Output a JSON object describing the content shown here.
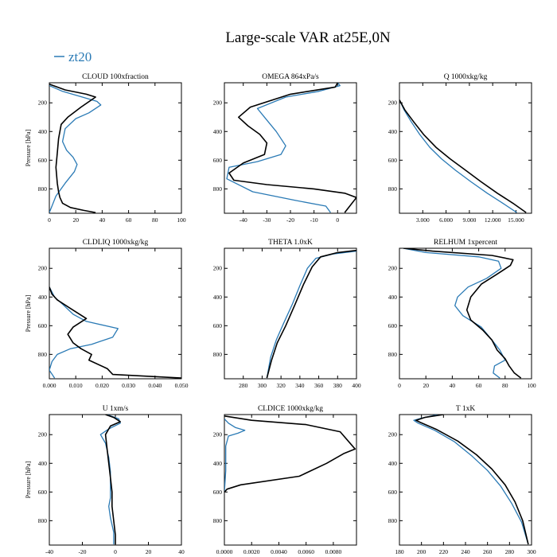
{
  "figure": {
    "title": "Large-scale VAR at25E,0N",
    "legend": {
      "label": "zt20",
      "color": "#2a7ab5"
    }
  },
  "colors": {
    "zt20": "#2a7ab5",
    "reference": "#000000",
    "axis": "#000000"
  },
  "chart_data": [
    {
      "type": "line",
      "title": "CLOUD  100xfraction",
      "xlabel": "",
      "ylabel": "Pressure [hPa]",
      "xlim": [
        0,
        100
      ],
      "ylim": [
        970,
        60
      ],
      "xticks": [
        0,
        20,
        40,
        60,
        80,
        100
      ],
      "xtick_labels": [
        "0",
        "20",
        "40",
        "60",
        "80",
        "100"
      ],
      "yticks": [
        200,
        400,
        600,
        800
      ],
      "ytick_labels": [
        "200",
        "400",
        "600",
        "800"
      ],
      "series": [
        {
          "name": "zt20",
          "color": "#2a7ab5",
          "x": [
            0,
            10,
            25,
            36,
            39,
            30,
            20,
            12,
            10,
            13,
            18,
            21,
            19,
            12,
            5,
            2,
            0
          ],
          "y": [
            80,
            120,
            160,
            190,
            215,
            270,
            310,
            380,
            470,
            530,
            580,
            630,
            680,
            760,
            850,
            920,
            965
          ]
        },
        {
          "name": "reference",
          "color": "#000000",
          "x": [
            0,
            12,
            28,
            35,
            24,
            14,
            9,
            7,
            6,
            5,
            6,
            7,
            8,
            10,
            16,
            26,
            35
          ],
          "y": [
            70,
            110,
            140,
            160,
            230,
            300,
            350,
            450,
            550,
            650,
            760,
            820,
            860,
            900,
            930,
            950,
            965
          ]
        }
      ]
    },
    {
      "type": "line",
      "title": "OMEGA  864xPa/s",
      "xlabel": "",
      "ylabel": "",
      "xlim": [
        -48,
        8
      ],
      "ylim": [
        970,
        60
      ],
      "xticks": [
        -40,
        -30,
        -20,
        -10,
        0
      ],
      "xtick_labels": [
        "-40",
        "-30",
        "-20",
        "-10",
        "0"
      ],
      "yticks": [
        200,
        400,
        600,
        800
      ],
      "ytick_labels": [
        "200",
        "400",
        "600",
        "800"
      ],
      "series": [
        {
          "name": "zt20",
          "color": "#2a7ab5",
          "x": [
            0,
            1,
            -8,
            -22,
            -34,
            -31,
            -26,
            -22,
            -24,
            -34,
            -46,
            -47,
            -36,
            -18,
            -5,
            -3
          ],
          "y": [
            60,
            80,
            120,
            160,
            240,
            300,
            400,
            500,
            560,
            610,
            650,
            730,
            820,
            880,
            920,
            965
          ]
        },
        {
          "name": "reference",
          "color": "#000000",
          "x": [
            0,
            -1,
            -20,
            -37,
            -42,
            -38,
            -33,
            -30,
            -31,
            -40,
            -46,
            -44,
            -30,
            -10,
            3,
            8,
            3
          ],
          "y": [
            60,
            90,
            140,
            230,
            300,
            360,
            420,
            480,
            560,
            620,
            690,
            740,
            770,
            800,
            830,
            860,
            965
          ]
        }
      ]
    },
    {
      "type": "line",
      "title": "Q  1000xkg/kg",
      "xlabel": "",
      "ylabel": "",
      "xlim": [
        0,
        17000
      ],
      "ylim": [
        970,
        60
      ],
      "xticks": [
        3000,
        6000,
        9000,
        12000,
        15000
      ],
      "xtick_labels": [
        "3.000",
        "6.000",
        "9.000",
        "12.000",
        "15.000"
      ],
      "yticks": [
        200,
        400,
        600,
        800
      ],
      "ytick_labels": [
        "200",
        "400",
        "600",
        "800"
      ],
      "series": [
        {
          "name": "zt20",
          "color": "#2a7ab5",
          "x": [
            0,
            600,
            1500,
            2600,
            3900,
            5400,
            7200,
            9200,
            11300,
            13300,
            15100
          ],
          "y": [
            180,
            250,
            330,
            420,
            510,
            590,
            670,
            750,
            830,
            900,
            965
          ]
        },
        {
          "name": "reference",
          "color": "#000000",
          "x": [
            0,
            700,
            1800,
            3100,
            4700,
            6500,
            8500,
            10500,
            12600,
            14600,
            16300
          ],
          "y": [
            180,
            250,
            330,
            420,
            510,
            590,
            670,
            750,
            830,
            900,
            965
          ]
        }
      ]
    },
    {
      "type": "line",
      "title": "CLDLIQ  1000xkg/kg",
      "xlabel": "",
      "ylabel": "Pressure [hPa]",
      "xlim": [
        0,
        0.05
      ],
      "ylim": [
        970,
        60
      ],
      "xticks": [
        0,
        0.01,
        0.02,
        0.03,
        0.04,
        0.05
      ],
      "xtick_labels": [
        "0.000",
        "0.010",
        "0.020",
        "0.030",
        "0.040",
        "0.050"
      ],
      "yticks": [
        200,
        400,
        600,
        800
      ],
      "ytick_labels": [
        "200",
        "400",
        "600",
        "800"
      ],
      "series": [
        {
          "name": "zt20",
          "color": "#2a7ab5",
          "x": [
            0,
            0.002,
            0.005,
            0.009,
            0.014,
            0.026,
            0.024,
            0.016,
            0.008,
            0.003,
            0.001,
            0,
            0.002
          ],
          "y": [
            330,
            400,
            450,
            520,
            570,
            620,
            680,
            730,
            760,
            800,
            850,
            910,
            965
          ]
        },
        {
          "name": "reference",
          "color": "#000000",
          "x": [
            0,
            0.001,
            0.003,
            0.008,
            0.014,
            0.009,
            0.007,
            0.009,
            0.012,
            0.016,
            0.015,
            0.022,
            0.024,
            0.05
          ],
          "y": [
            330,
            380,
            420,
            480,
            550,
            610,
            660,
            720,
            760,
            800,
            840,
            900,
            940,
            965
          ]
        }
      ]
    },
    {
      "type": "line",
      "title": "THETA  1.0xK",
      "xlabel": "",
      "ylabel": "",
      "xlim": [
        260,
        400
      ],
      "ylim": [
        970,
        60
      ],
      "xticks": [
        280,
        300,
        320,
        340,
        360,
        380,
        400
      ],
      "xtick_labels": [
        "280",
        "300",
        "320",
        "340",
        "360",
        "380",
        "400"
      ],
      "yticks": [
        200,
        400,
        600,
        800
      ],
      "ytick_labels": [
        "200",
        "400",
        "600",
        "800"
      ],
      "series": [
        {
          "name": "zt20",
          "color": "#2a7ab5",
          "x": [
            400,
            375,
            357,
            348,
            340,
            332,
            323,
            315,
            309,
            305
          ],
          "y": [
            80,
            100,
            130,
            200,
            320,
            450,
            580,
            700,
            820,
            965
          ]
        },
        {
          "name": "reference",
          "color": "#000000",
          "x": [
            400,
            380,
            362,
            353,
            344,
            335,
            325,
            316,
            310,
            305
          ],
          "y": [
            75,
            90,
            120,
            190,
            310,
            450,
            600,
            720,
            840,
            965
          ]
        }
      ]
    },
    {
      "type": "line",
      "title": "RELHUM  1xpercent",
      "xlabel": "",
      "ylabel": "",
      "xlim": [
        0,
        100
      ],
      "ylim": [
        970,
        60
      ],
      "xticks": [
        0,
        20,
        40,
        60,
        80,
        100
      ],
      "xtick_labels": [
        "0",
        "20",
        "40",
        "60",
        "80",
        "100"
      ],
      "yticks": [
        200,
        400,
        600,
        800
      ],
      "ytick_labels": [
        "200",
        "400",
        "600",
        "800"
      ],
      "series": [
        {
          "name": "zt20",
          "color": "#2a7ab5",
          "x": [
            3,
            20,
            60,
            75,
            77,
            66,
            52,
            44,
            42,
            48,
            62,
            70,
            76,
            80,
            72,
            71,
            76
          ],
          "y": [
            60,
            90,
            120,
            150,
            200,
            270,
            330,
            400,
            460,
            530,
            610,
            700,
            770,
            840,
            880,
            930,
            965
          ]
        },
        {
          "name": "reference",
          "color": "#000000",
          "x": [
            3,
            25,
            70,
            86,
            84,
            74,
            62,
            54,
            51,
            54,
            63,
            70,
            74,
            80,
            83,
            87,
            92
          ],
          "y": [
            60,
            80,
            110,
            140,
            180,
            240,
            310,
            400,
            490,
            560,
            630,
            700,
            770,
            830,
            880,
            930,
            965
          ]
        }
      ]
    },
    {
      "type": "line",
      "title": "U  1xm/s",
      "xlabel": "",
      "ylabel": "Pressure [hPa]",
      "xlim": [
        -40,
        40
      ],
      "ylim": [
        970,
        60
      ],
      "xticks": [
        -40,
        -20,
        0,
        20,
        40
      ],
      "xtick_labels": [
        "-40",
        "-20",
        "0",
        "20",
        "40"
      ],
      "yticks": [
        200,
        400,
        600,
        800
      ],
      "ytick_labels": [
        "200",
        "400",
        "600",
        "800"
      ],
      "series": [
        {
          "name": "zt20",
          "color": "#2a7ab5",
          "x": [
            -5,
            2,
            3,
            -4,
            -9,
            -6,
            -4,
            -3,
            -3,
            -3,
            -4,
            -3,
            -1,
            -1
          ],
          "y": [
            60,
            90,
            120,
            160,
            200,
            260,
            360,
            460,
            560,
            640,
            700,
            780,
            880,
            965
          ]
        },
        {
          "name": "reference",
          "color": "#000000",
          "x": [
            -6,
            -1,
            3,
            -3,
            -6,
            -5,
            -4,
            -3,
            -2,
            -2,
            -1,
            0,
            0
          ],
          "y": [
            60,
            80,
            110,
            140,
            200,
            300,
            400,
            500,
            600,
            700,
            800,
            900,
            965
          ]
        }
      ]
    },
    {
      "type": "line",
      "title": "CLDICE  1000xkg/kg",
      "xlabel": "",
      "ylabel": "",
      "xlim": [
        0,
        0.0097
      ],
      "ylim": [
        970,
        60
      ],
      "xticks": [
        0,
        0.002,
        0.004,
        0.006,
        0.008
      ],
      "xtick_labels": [
        "0.0000",
        "0.0020",
        "0.0040",
        "0.0060",
        "0.0080"
      ],
      "yticks": [
        200,
        400,
        600,
        800
      ],
      "ytick_labels": [
        "200",
        "400",
        "600",
        "800"
      ],
      "series": [
        {
          "name": "zt20",
          "color": "#2a7ab5",
          "x": [
            0,
            0.0003,
            0.0008,
            0.0015,
            0.001,
            0.0003,
            0.0001,
            0.0001,
            0
          ],
          "y": [
            90,
            120,
            150,
            170,
            190,
            210,
            280,
            450,
            600
          ]
        },
        {
          "name": "reference",
          "color": "#000000",
          "x": [
            0,
            0.002,
            0.006,
            0.0085,
            0.0096,
            0.0088,
            0.0075,
            0.0055,
            0.0012,
            0.0002,
            0
          ],
          "y": [
            70,
            100,
            130,
            180,
            300,
            330,
            400,
            490,
            550,
            580,
            600
          ]
        }
      ]
    },
    {
      "type": "line",
      "title": "T  1xK",
      "xlabel": "",
      "ylabel": "",
      "xlim": [
        180,
        300
      ],
      "ylim": [
        970,
        60
      ],
      "xticks": [
        180,
        200,
        220,
        240,
        260,
        280,
        300
      ],
      "xtick_labels": [
        "180",
        "200",
        "220",
        "240",
        "260",
        "280",
        "300"
      ],
      "yticks": [
        200,
        400,
        600,
        800
      ],
      "ytick_labels": [
        "200",
        "400",
        "600",
        "800"
      ],
      "series": [
        {
          "name": "zt20",
          "color": "#2a7ab5",
          "x": [
            215,
            200,
            193,
            197,
            212,
            230,
            246,
            260,
            272,
            282,
            291,
            297
          ],
          "y": [
            60,
            85,
            100,
            120,
            170,
            250,
            350,
            450,
            560,
            680,
            810,
            965
          ]
        },
        {
          "name": "reference",
          "color": "#000000",
          "x": [
            220,
            203,
            195,
            199,
            214,
            233,
            250,
            264,
            276,
            285,
            292,
            297
          ],
          "y": [
            60,
            80,
            100,
            115,
            165,
            245,
            340,
            440,
            550,
            670,
            800,
            965
          ]
        }
      ]
    }
  ]
}
